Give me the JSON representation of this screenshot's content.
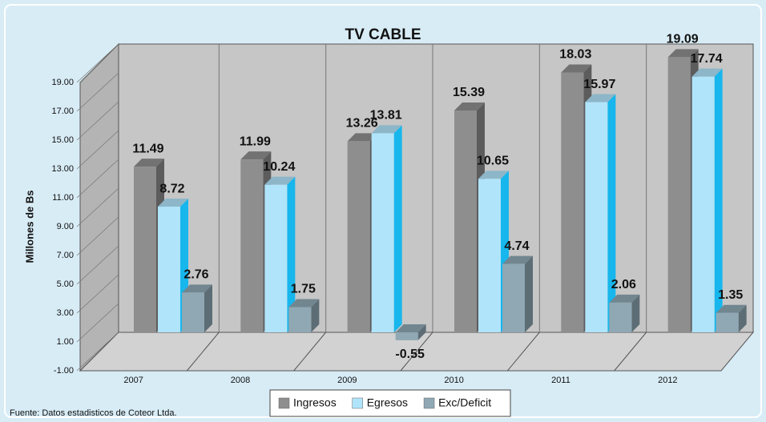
{
  "chart_data": {
    "type": "bar3d",
    "title": "TV CABLE",
    "y_label": "Millones de Bs",
    "source": "Fuente: Datos estadisticos de Coteor Ltda.",
    "categories": [
      "2007",
      "2008",
      "2009",
      "2010",
      "2011",
      "2012"
    ],
    "series": [
      {
        "name": "Ingresos",
        "color": "#8e8e8e",
        "values": [
          11.49,
          11.99,
          13.26,
          15.39,
          18.03,
          19.09
        ]
      },
      {
        "name": "Egresos",
        "color": "#b0e4fa",
        "values": [
          8.72,
          10.24,
          13.81,
          10.65,
          15.97,
          17.74
        ]
      },
      {
        "name": "Exc/Deficit",
        "color": "#8fa8b4",
        "values": [
          2.76,
          1.75,
          -0.55,
          4.74,
          2.06,
          1.35
        ]
      }
    ],
    "ylim": [
      -1,
      19
    ],
    "yticks": [
      {
        "value": -1,
        "label": "-1.00"
      },
      {
        "value": 1,
        "label": "1.00"
      },
      {
        "value": 3,
        "label": "3.00"
      },
      {
        "value": 5,
        "label": "5.00"
      },
      {
        "value": 7,
        "label": "7.00"
      },
      {
        "value": 9,
        "label": "9.00"
      },
      {
        "value": 11,
        "label": "11.00"
      },
      {
        "value": 13,
        "label": "13.00"
      },
      {
        "value": 15,
        "label": "15.00"
      },
      {
        "value": 17,
        "label": "17.00"
      },
      {
        "value": 19,
        "label": "19.00"
      }
    ],
    "legend": "bottom"
  }
}
